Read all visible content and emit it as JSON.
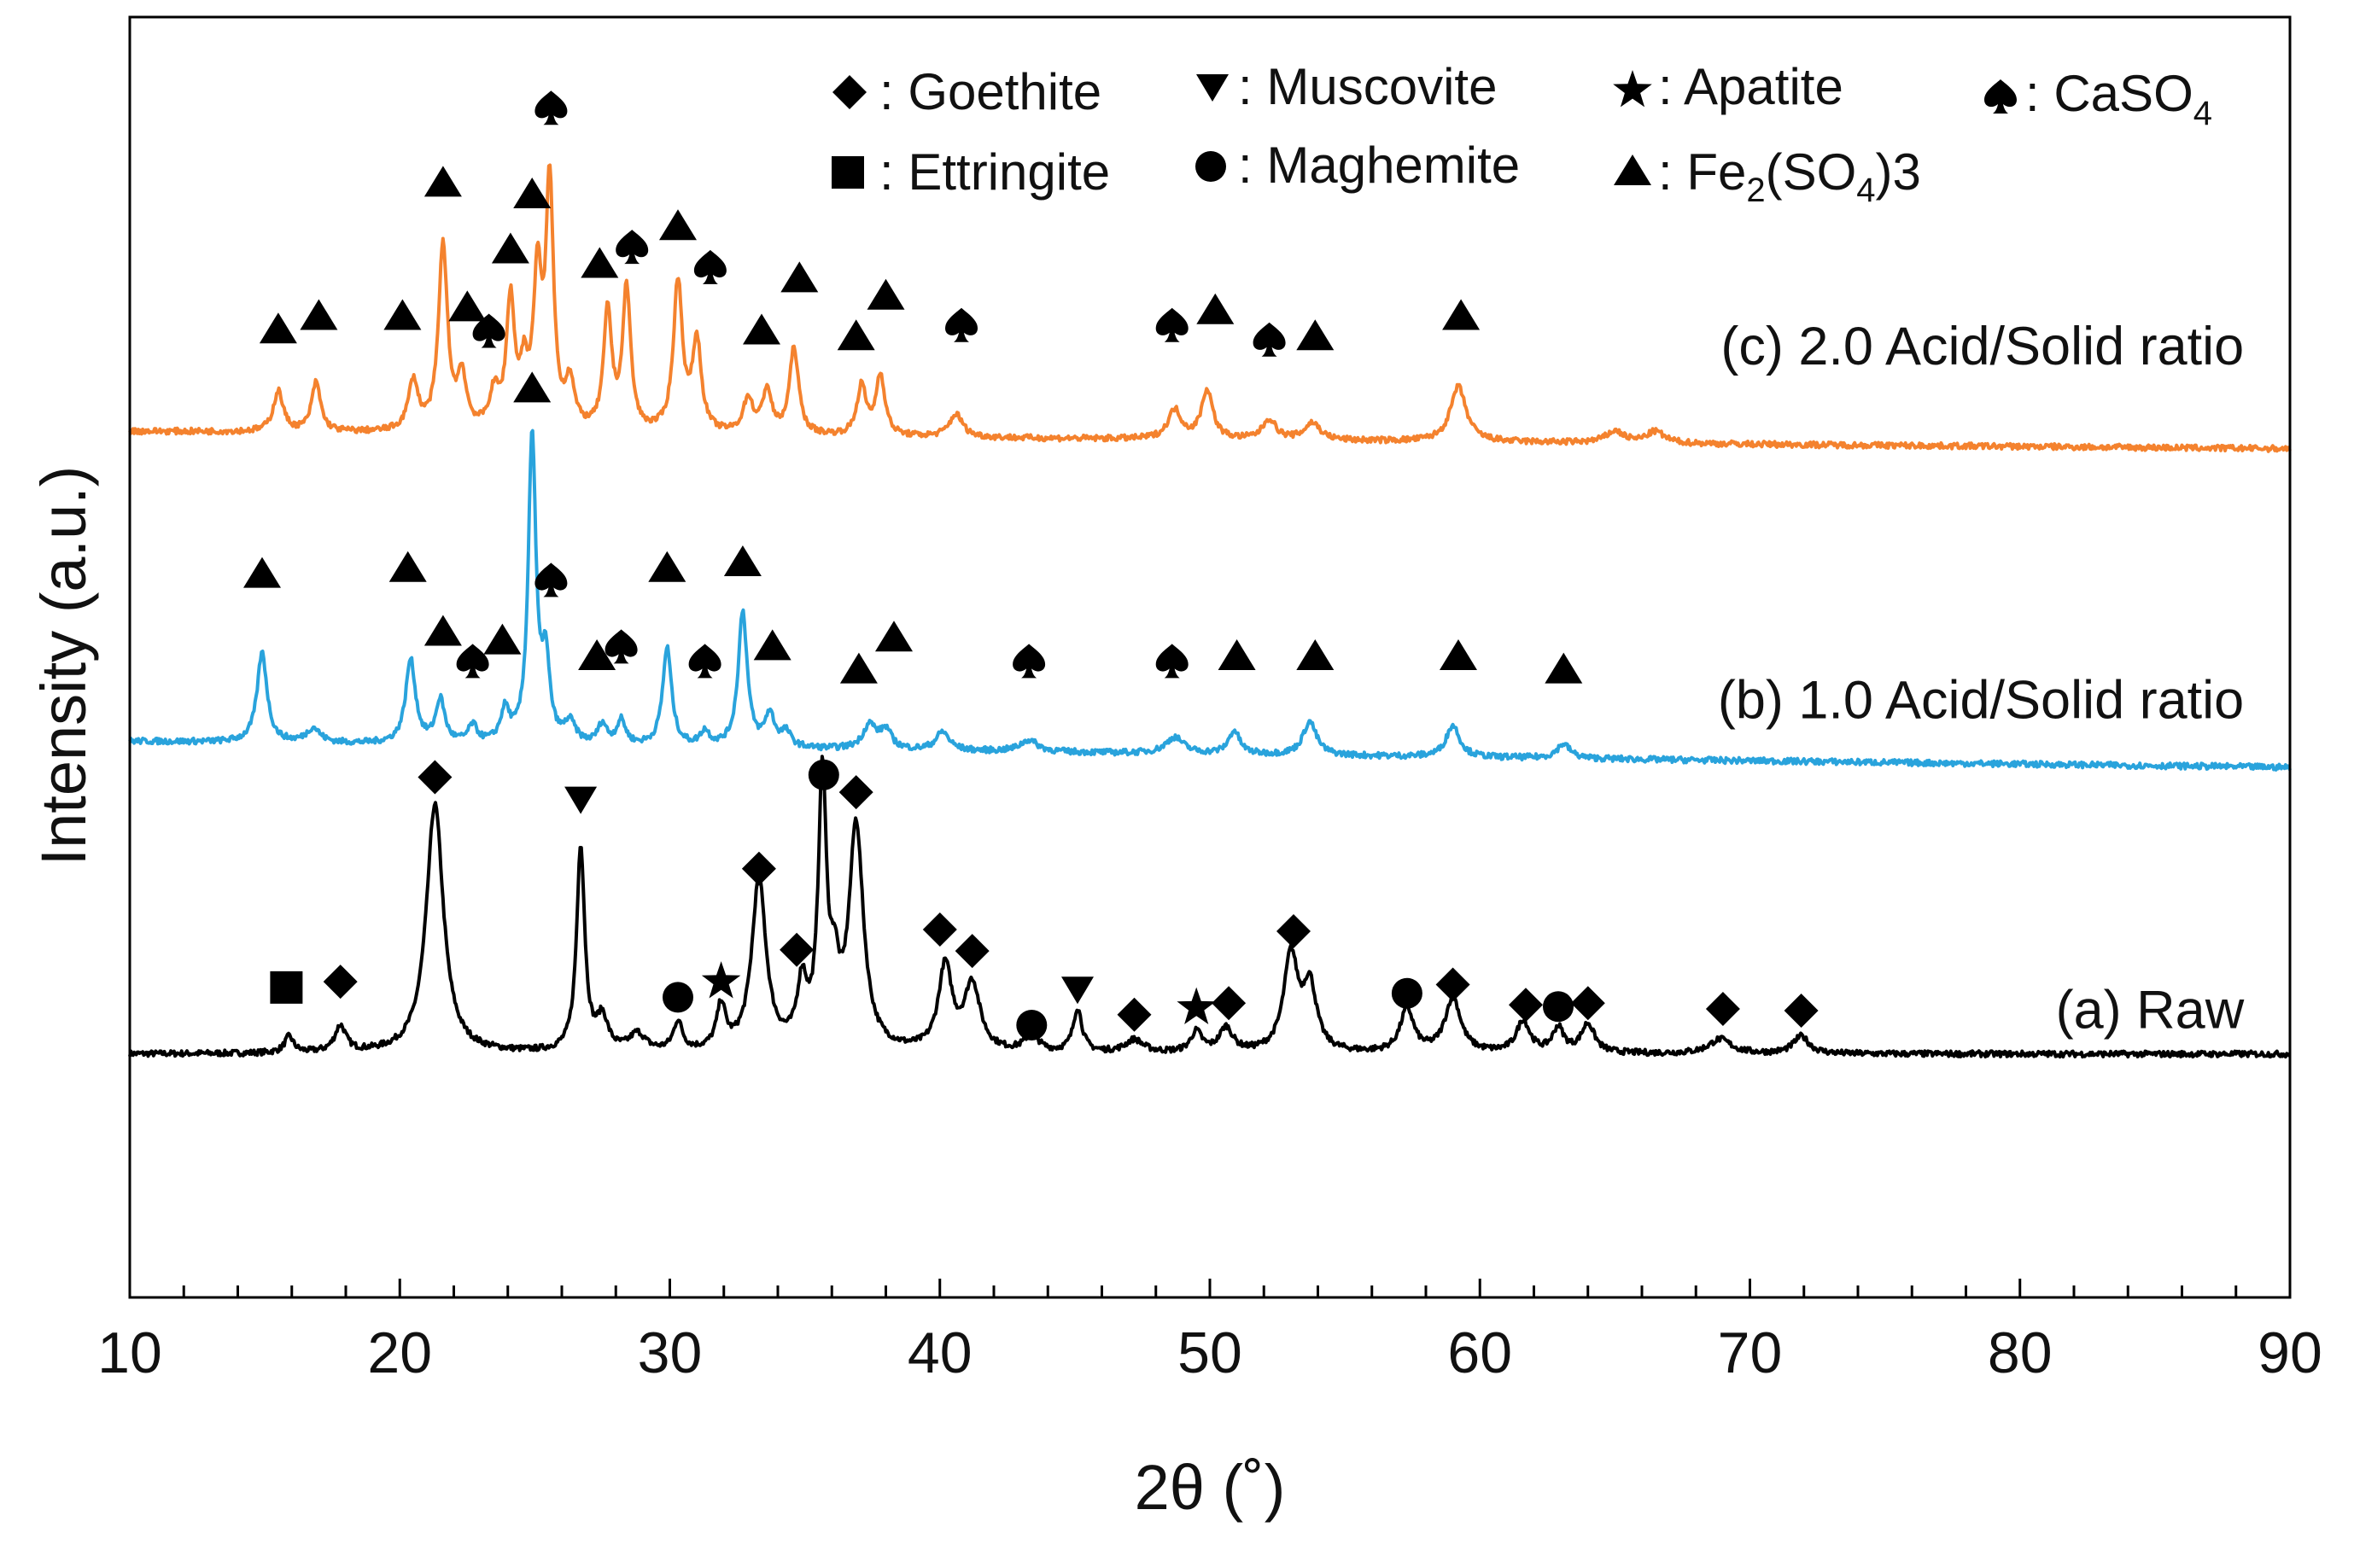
{
  "chart_data": {
    "type": "line",
    "title": "",
    "xlabel": "2θ (˚)",
    "ylabel": "Intensity (a.u.)",
    "xlim": [
      10,
      90
    ],
    "x_ticks": [
      10,
      20,
      30,
      40,
      50,
      60,
      70,
      80,
      90
    ],
    "x_minor_step": 2,
    "y_ticks_shown": false,
    "grid": false,
    "legend": {
      "placement": "top-right",
      "entries": [
        {
          "marker": "diamond",
          "text": "Goethite"
        },
        {
          "marker": "tri-down",
          "text": "Muscovite"
        },
        {
          "marker": "star",
          "text": "Apatite"
        },
        {
          "marker": "spade",
          "text": "CaSO4",
          "main": "CaSO",
          "sub": "4"
        },
        {
          "marker": "square",
          "text": "Ettringite"
        },
        {
          "marker": "circle",
          "text": "Maghemite"
        },
        {
          "marker": "tri-up",
          "text": "Fe2(SO4)3",
          "main": "Fe",
          "sub1": "2",
          "mid": "(SO",
          "sub2": "4",
          "end": ")3"
        }
      ]
    },
    "series": [
      {
        "name": "(a) Raw",
        "color": "#000000",
        "baseline": 2.0,
        "noise": 0.05,
        "peaks": [
          {
            "x": 15.9,
            "h": 0.28,
            "w": 0.2
          },
          {
            "x": 17.8,
            "h": 0.45,
            "w": 0.25
          },
          {
            "x": 21.3,
            "h": 4.3,
            "w": 0.38
          },
          {
            "x": 26.7,
            "h": 3.55,
            "w": 0.18
          },
          {
            "x": 27.5,
            "h": 0.55,
            "w": 0.25
          },
          {
            "x": 28.8,
            "h": 0.3,
            "w": 0.35
          },
          {
            "x": 30.3,
            "h": 0.5,
            "w": 0.2
          },
          {
            "x": 31.9,
            "h": 0.75,
            "w": 0.2
          },
          {
            "x": 33.3,
            "h": 2.95,
            "w": 0.32
          },
          {
            "x": 34.9,
            "h": 1.05,
            "w": 0.22
          },
          {
            "x": 35.65,
            "h": 4.6,
            "w": 0.18
          },
          {
            "x": 36.1,
            "h": 1.0,
            "w": 0.2
          },
          {
            "x": 36.9,
            "h": 3.85,
            "w": 0.32
          },
          {
            "x": 40.2,
            "h": 1.45,
            "w": 0.3
          },
          {
            "x": 41.2,
            "h": 1.15,
            "w": 0.35
          },
          {
            "x": 43.4,
            "h": 0.3,
            "w": 0.3
          },
          {
            "x": 45.1,
            "h": 0.75,
            "w": 0.2
          },
          {
            "x": 47.2,
            "h": 0.22,
            "w": 0.4
          },
          {
            "x": 49.5,
            "h": 0.35,
            "w": 0.25
          },
          {
            "x": 50.6,
            "h": 0.42,
            "w": 0.3
          },
          {
            "x": 53.0,
            "h": 1.65,
            "w": 0.32
          },
          {
            "x": 53.7,
            "h": 1.1,
            "w": 0.3
          },
          {
            "x": 57.3,
            "h": 0.75,
            "w": 0.3
          },
          {
            "x": 59.0,
            "h": 0.95,
            "w": 0.35
          },
          {
            "x": 61.6,
            "h": 0.55,
            "w": 0.3
          },
          {
            "x": 62.9,
            "h": 0.42,
            "w": 0.25
          },
          {
            "x": 64.0,
            "h": 0.5,
            "w": 0.3
          },
          {
            "x": 68.9,
            "h": 0.25,
            "w": 0.5
          },
          {
            "x": 71.9,
            "h": 0.3,
            "w": 0.35
          }
        ],
        "markers": [
          {
            "x": 15.8,
            "y": 3.15,
            "m": "square"
          },
          {
            "x": 17.8,
            "y": 3.25,
            "m": "diamond"
          },
          {
            "x": 21.3,
            "y": 6.78,
            "m": "diamond"
          },
          {
            "x": 26.7,
            "y": 6.38,
            "m": "tri-down"
          },
          {
            "x": 30.3,
            "y": 2.98,
            "m": "circle"
          },
          {
            "x": 31.9,
            "y": 3.25,
            "m": "star"
          },
          {
            "x": 33.3,
            "y": 5.2,
            "m": "diamond"
          },
          {
            "x": 34.7,
            "y": 3.8,
            "m": "diamond"
          },
          {
            "x": 35.7,
            "y": 6.82,
            "m": "circle"
          },
          {
            "x": 36.9,
            "y": 6.52,
            "m": "diamond"
          },
          {
            "x": 40.0,
            "y": 4.15,
            "m": "diamond"
          },
          {
            "x": 41.2,
            "y": 3.78,
            "m": "diamond"
          },
          {
            "x": 43.4,
            "y": 2.5,
            "m": "circle"
          },
          {
            "x": 45.1,
            "y": 3.1,
            "m": "tri-down"
          },
          {
            "x": 47.2,
            "y": 2.68,
            "m": "diamond"
          },
          {
            "x": 49.5,
            "y": 2.8,
            "m": "star"
          },
          {
            "x": 50.7,
            "y": 2.88,
            "m": "diamond"
          },
          {
            "x": 53.1,
            "y": 4.12,
            "m": "diamond"
          },
          {
            "x": 57.3,
            "y": 3.05,
            "m": "circle"
          },
          {
            "x": 59.0,
            "y": 3.2,
            "m": "diamond"
          },
          {
            "x": 61.7,
            "y": 2.85,
            "m": "diamond"
          },
          {
            "x": 62.9,
            "y": 2.82,
            "m": "circle"
          },
          {
            "x": 64.0,
            "y": 2.88,
            "m": "diamond"
          },
          {
            "x": 69.0,
            "y": 2.78,
            "m": "diamond"
          },
          {
            "x": 71.9,
            "y": 2.75,
            "m": "diamond"
          }
        ]
      },
      {
        "name": "(b) 1.0 Acid/Solid ratio",
        "color": "#29a3dc",
        "baseline_start": 7.4,
        "baseline_end": 6.95,
        "noise": 0.05,
        "peaks": [
          {
            "x": 14.9,
            "h": 1.55,
            "w": 0.22
          },
          {
            "x": 16.8,
            "h": 0.25,
            "w": 0.3
          },
          {
            "x": 20.4,
            "h": 1.45,
            "w": 0.22
          },
          {
            "x": 21.5,
            "h": 0.75,
            "w": 0.2
          },
          {
            "x": 22.7,
            "h": 0.3,
            "w": 0.2
          },
          {
            "x": 23.9,
            "h": 0.55,
            "w": 0.2
          },
          {
            "x": 24.9,
            "h": 5.3,
            "w": 0.17
          },
          {
            "x": 25.4,
            "h": 1.35,
            "w": 0.18
          },
          {
            "x": 26.3,
            "h": 0.35,
            "w": 0.25
          },
          {
            "x": 27.5,
            "h": 0.35,
            "w": 0.2
          },
          {
            "x": 28.2,
            "h": 0.42,
            "w": 0.2
          },
          {
            "x": 29.9,
            "h": 1.7,
            "w": 0.2
          },
          {
            "x": 31.3,
            "h": 0.25,
            "w": 0.2
          },
          {
            "x": 32.7,
            "h": 2.35,
            "w": 0.2
          },
          {
            "x": 33.7,
            "h": 0.55,
            "w": 0.22
          },
          {
            "x": 34.3,
            "h": 0.25,
            "w": 0.22
          },
          {
            "x": 37.4,
            "h": 0.42,
            "w": 0.3
          },
          {
            "x": 38.0,
            "h": 0.32,
            "w": 0.25
          },
          {
            "x": 40.1,
            "h": 0.32,
            "w": 0.3
          },
          {
            "x": 43.3,
            "h": 0.2,
            "w": 0.4
          },
          {
            "x": 48.7,
            "h": 0.28,
            "w": 0.4
          },
          {
            "x": 50.9,
            "h": 0.4,
            "w": 0.25
          },
          {
            "x": 53.7,
            "h": 0.58,
            "w": 0.3
          },
          {
            "x": 59.0,
            "h": 0.55,
            "w": 0.3
          },
          {
            "x": 63.1,
            "h": 0.25,
            "w": 0.3
          }
        ],
        "markers": [
          {
            "x": 14.9,
            "y": 10.3,
            "m": "tri-up"
          },
          {
            "x": 20.3,
            "y": 10.4,
            "m": "tri-up"
          },
          {
            "x": 21.6,
            "y": 9.3,
            "m": "tri-up"
          },
          {
            "x": 22.7,
            "y": 8.8,
            "m": "spade"
          },
          {
            "x": 23.8,
            "y": 9.15,
            "m": "tri-up"
          },
          {
            "x": 24.9,
            "y": 13.5,
            "m": "tri-up"
          },
          {
            "x": 25.6,
            "y": 10.2,
            "m": "spade"
          },
          {
            "x": 27.3,
            "y": 8.88,
            "m": "tri-up"
          },
          {
            "x": 28.2,
            "y": 9.05,
            "m": "spade"
          },
          {
            "x": 29.9,
            "y": 10.4,
            "m": "tri-up"
          },
          {
            "x": 31.3,
            "y": 8.8,
            "m": "spade"
          },
          {
            "x": 32.7,
            "y": 10.5,
            "m": "tri-up"
          },
          {
            "x": 33.8,
            "y": 9.05,
            "m": "tri-up"
          },
          {
            "x": 37.0,
            "y": 8.65,
            "m": "tri-up"
          },
          {
            "x": 38.3,
            "y": 9.2,
            "m": "tri-up"
          },
          {
            "x": 43.3,
            "y": 8.8,
            "m": "spade"
          },
          {
            "x": 48.6,
            "y": 8.8,
            "m": "spade"
          },
          {
            "x": 51.0,
            "y": 8.88,
            "m": "tri-up"
          },
          {
            "x": 53.9,
            "y": 8.88,
            "m": "tri-up"
          },
          {
            "x": 59.2,
            "y": 8.88,
            "m": "tri-up"
          },
          {
            "x": 63.1,
            "y": 8.65,
            "m": "tri-up"
          }
        ]
      },
      {
        "name": "(c) 2.0 Acid/Solid ratio",
        "color": "#f4822e",
        "baseline_start": 12.75,
        "baseline_end": 12.45,
        "noise": 0.05,
        "peaks": [
          {
            "x": 15.5,
            "h": 0.7,
            "w": 0.22
          },
          {
            "x": 16.9,
            "h": 0.85,
            "w": 0.2
          },
          {
            "x": 20.5,
            "h": 0.85,
            "w": 0.22
          },
          {
            "x": 21.6,
            "h": 3.2,
            "w": 0.2
          },
          {
            "x": 22.3,
            "h": 0.9,
            "w": 0.2
          },
          {
            "x": 23.5,
            "h": 0.6,
            "w": 0.22
          },
          {
            "x": 24.1,
            "h": 2.2,
            "w": 0.18
          },
          {
            "x": 24.6,
            "h": 0.9,
            "w": 0.18
          },
          {
            "x": 25.1,
            "h": 2.55,
            "w": 0.18
          },
          {
            "x": 25.55,
            "h": 4.2,
            "w": 0.17
          },
          {
            "x": 26.3,
            "h": 0.8,
            "w": 0.2
          },
          {
            "x": 27.7,
            "h": 2.05,
            "w": 0.18
          },
          {
            "x": 28.4,
            "h": 2.45,
            "w": 0.18
          },
          {
            "x": 30.3,
            "h": 2.6,
            "w": 0.2
          },
          {
            "x": 31.0,
            "h": 1.55,
            "w": 0.2
          },
          {
            "x": 32.9,
            "h": 0.6,
            "w": 0.22
          },
          {
            "x": 33.6,
            "h": 0.75,
            "w": 0.2
          },
          {
            "x": 34.6,
            "h": 1.5,
            "w": 0.2
          },
          {
            "x": 37.1,
            "h": 0.85,
            "w": 0.2
          },
          {
            "x": 37.8,
            "h": 1.05,
            "w": 0.2
          },
          {
            "x": 40.6,
            "h": 0.4,
            "w": 0.3
          },
          {
            "x": 48.7,
            "h": 0.5,
            "w": 0.3
          },
          {
            "x": 49.9,
            "h": 0.85,
            "w": 0.25
          },
          {
            "x": 52.2,
            "h": 0.35,
            "w": 0.3
          },
          {
            "x": 53.8,
            "h": 0.3,
            "w": 0.35
          },
          {
            "x": 59.2,
            "h": 0.95,
            "w": 0.35
          },
          {
            "x": 65.0,
            "h": 0.2,
            "w": 0.4
          },
          {
            "x": 66.5,
            "h": 0.2,
            "w": 0.4
          }
        ],
        "markers": [
          {
            "x": 15.5,
            "y": 14.52,
            "m": "tri-up"
          },
          {
            "x": 17.0,
            "y": 14.75,
            "m": "tri-up"
          },
          {
            "x": 20.1,
            "y": 14.75,
            "m": "tri-up"
          },
          {
            "x": 21.6,
            "y": 17.05,
            "m": "tri-up"
          },
          {
            "x": 22.5,
            "y": 14.9,
            "m": "tri-up"
          },
          {
            "x": 23.3,
            "y": 14.5,
            "m": "spade"
          },
          {
            "x": 24.1,
            "y": 15.9,
            "m": "tri-up"
          },
          {
            "x": 24.9,
            "y": 16.85,
            "m": "tri-up"
          },
          {
            "x": 25.6,
            "y": 18.35,
            "m": "spade"
          },
          {
            "x": 27.4,
            "y": 15.65,
            "m": "tri-up"
          },
          {
            "x": 28.6,
            "y": 15.95,
            "m": "spade"
          },
          {
            "x": 30.3,
            "y": 16.3,
            "m": "tri-up"
          },
          {
            "x": 31.5,
            "y": 15.6,
            "m": "spade"
          },
          {
            "x": 33.4,
            "y": 14.5,
            "m": "tri-up"
          },
          {
            "x": 34.8,
            "y": 15.4,
            "m": "tri-up"
          },
          {
            "x": 36.9,
            "y": 14.4,
            "m": "tri-up"
          },
          {
            "x": 38.0,
            "y": 15.1,
            "m": "tri-up"
          },
          {
            "x": 40.8,
            "y": 14.6,
            "m": "spade"
          },
          {
            "x": 48.6,
            "y": 14.6,
            "m": "spade"
          },
          {
            "x": 50.2,
            "y": 14.85,
            "m": "tri-up"
          },
          {
            "x": 52.2,
            "y": 14.35,
            "m": "spade"
          },
          {
            "x": 53.9,
            "y": 14.4,
            "m": "tri-up"
          },
          {
            "x": 59.3,
            "y": 14.75,
            "m": "tri-up"
          }
        ]
      }
    ],
    "series_label_anchor_x": 88.3,
    "series_label_y": [
      2.45,
      7.8,
      13.9
    ],
    "y_range": [
      -2.2,
      19.9
    ]
  }
}
